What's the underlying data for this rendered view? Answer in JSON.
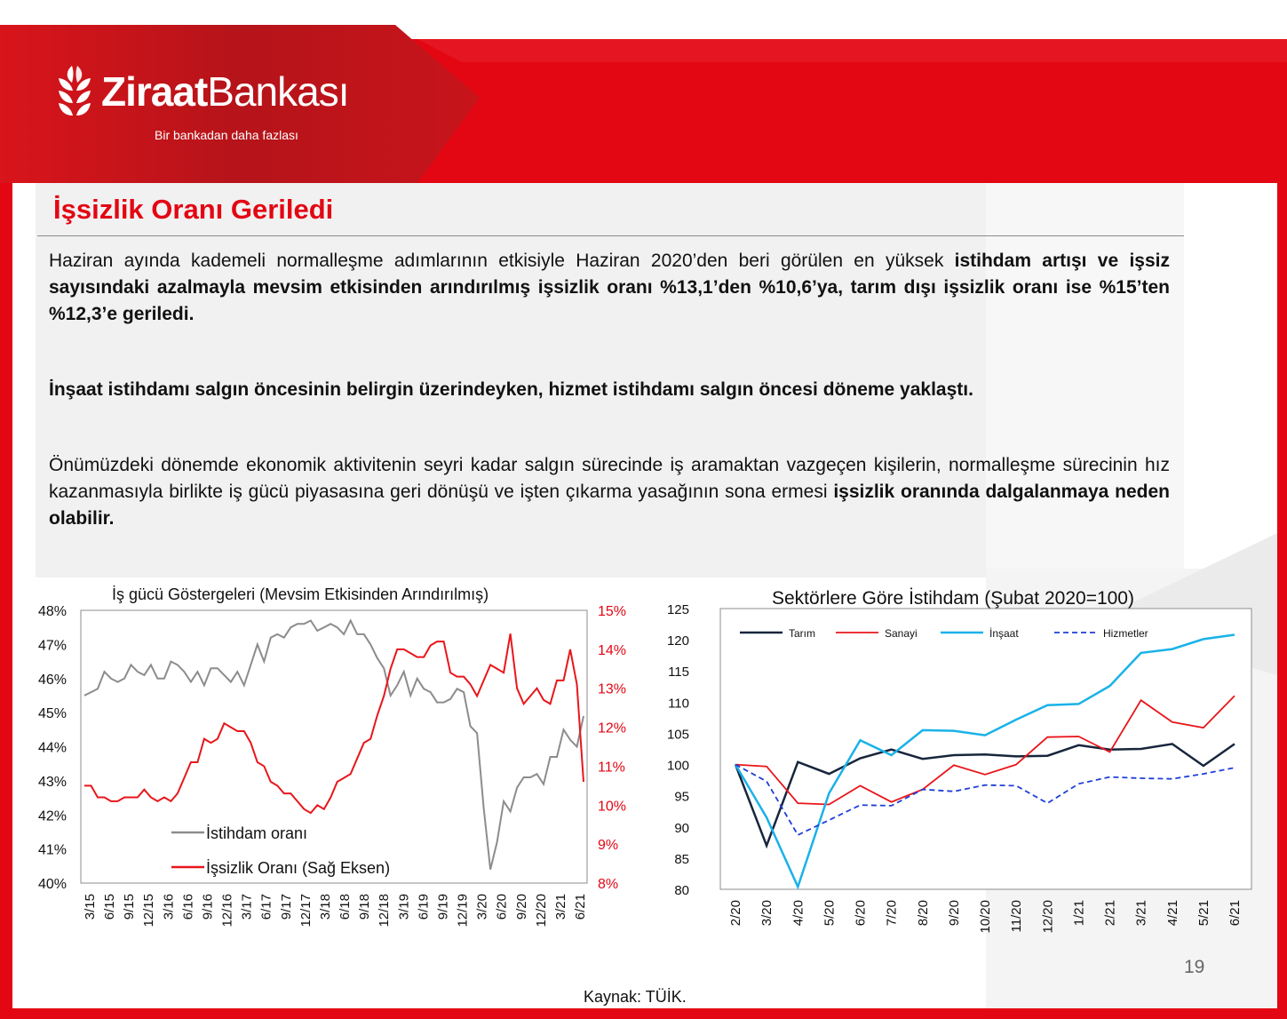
{
  "header": {
    "logo_text_bold": "Ziraat",
    "logo_text_light": "Bankası",
    "slogan": "Bir bankadan daha fazlası"
  },
  "page": {
    "title": "İşsizlik Oranı Geriledi",
    "page_number": "19",
    "source": "Kaynak: TÜİK."
  },
  "paragraphs": {
    "p1_normal": "Haziran ayında kademeli normalleşme adımlarının etkisiyle Haziran 2020’den beri görülen en yüksek ",
    "p1_bold": "istihdam artışı ve işsiz sayısındaki azalmayla mevsim etkisinden arındırılmış işsizlik oranı %13,1’den %10,6’ya, tarım dışı işsizlik oranı ise %15’ten %12,3’e geriledi.",
    "p2_bold": "İnşaat istihdamı salgın öncesinin belirgin üzerindeyken, hizmet istihdamı salgın öncesi döneme yaklaştı.",
    "p3_normal": "Önümüzdeki dönemde ekonomik aktivitenin seyri kadar salgın sürecinde iş aramaktan vazgeçen kişilerin, normalleşme sürecinin hız kazanmasıyla birlikte iş gücü piyasasına geri dönüşü ve işten çıkarma yasağının sona ermesi ",
    "p3_bold": "işsizlik oranında dalgalanmaya neden olabilir."
  },
  "colors": {
    "brand_red": "#e30613",
    "dark_red": "#b0141a",
    "tarim": "#17263c",
    "sanayi": "#e8161b",
    "insaat": "#19b2e8",
    "hizmetler": "#1f3fd8",
    "istihdam": "#8c8c8c"
  },
  "chart_data": [
    {
      "type": "line",
      "title": "İş gücü Göstergeleri (Mevsim Etkisinden Arındırılmış)",
      "x_tick_labels": [
        "3/15",
        "6/15",
        "9/15",
        "12/15",
        "3/16",
        "6/16",
        "9/16",
        "12/16",
        "3/17",
        "6/17",
        "9/17",
        "12/17",
        "3/18",
        "6/18",
        "9/18",
        "12/18",
        "3/19",
        "6/19",
        "9/19",
        "12/19",
        "3/20",
        "6/20",
        "9/20",
        "12/20",
        "3/21",
        "6/21"
      ],
      "y_left_ticks": [
        "40%",
        "41%",
        "42%",
        "43%",
        "44%",
        "45%",
        "46%",
        "47%",
        "48%"
      ],
      "y_right_ticks": [
        "8%",
        "9%",
        "10%",
        "11%",
        "12%",
        "13%",
        "14%",
        "15%"
      ],
      "ylim_left": [
        40,
        48
      ],
      "ylim_right": [
        8,
        15
      ],
      "legend_placement": "bottom-left inside",
      "series": [
        {
          "name": "İstihdam oranı",
          "axis": "left",
          "values": [
            45.5,
            45.6,
            45.7,
            46.2,
            46.0,
            45.9,
            46.0,
            46.4,
            46.2,
            46.1,
            46.4,
            46.0,
            46.0,
            46.5,
            46.4,
            46.2,
            45.9,
            46.2,
            45.8,
            46.3,
            46.3,
            46.1,
            45.9,
            46.2,
            45.8,
            46.4,
            47.0,
            46.5,
            47.2,
            47.3,
            47.2,
            47.5,
            47.6,
            47.6,
            47.7,
            47.4,
            47.5,
            47.6,
            47.5,
            47.3,
            47.7,
            47.3,
            47.3,
            47.0,
            46.6,
            46.3,
            45.5,
            45.8,
            46.2,
            45.5,
            46.0,
            45.7,
            45.6,
            45.3,
            45.3,
            45.4,
            45.7,
            45.6,
            44.6,
            44.4,
            42.2,
            40.4,
            41.2,
            42.4,
            42.1,
            42.8,
            43.1,
            43.1,
            43.2,
            42.9,
            43.7,
            43.7,
            44.5,
            44.2,
            44.0,
            44.9
          ]
        },
        {
          "name": "İşsizlik Oranı (Sağ Eksen)",
          "axis": "right",
          "values": [
            10.5,
            10.5,
            10.2,
            10.2,
            10.1,
            10.1,
            10.2,
            10.2,
            10.2,
            10.4,
            10.2,
            10.1,
            10.2,
            10.1,
            10.3,
            10.7,
            11.1,
            11.1,
            11.7,
            11.6,
            11.7,
            12.1,
            12.0,
            11.9,
            11.9,
            11.6,
            11.1,
            11.0,
            10.6,
            10.5,
            10.3,
            10.3,
            10.1,
            9.9,
            9.8,
            10.0,
            9.9,
            10.2,
            10.6,
            10.7,
            10.8,
            11.2,
            11.6,
            11.7,
            12.3,
            12.8,
            13.5,
            14.0,
            14.0,
            13.9,
            13.8,
            13.8,
            14.1,
            14.2,
            14.2,
            13.4,
            13.3,
            13.3,
            13.1,
            12.8,
            13.2,
            13.6,
            13.5,
            13.4,
            14.4,
            13.0,
            12.6,
            12.8,
            13.0,
            12.7,
            12.6,
            13.2,
            13.2,
            14.0,
            13.1,
            10.6
          ]
        }
      ]
    },
    {
      "type": "line",
      "title": "Sektörlere Göre İstihdam (Şubat 2020=100)",
      "categories": [
        "2/20",
        "3/20",
        "4/20",
        "5/20",
        "6/20",
        "7/20",
        "8/20",
        "9/20",
        "10/20",
        "11/20",
        "12/20",
        "1/21",
        "2/21",
        "3/21",
        "4/21",
        "5/21",
        "6/21"
      ],
      "y_ticks": [
        "80",
        "85",
        "90",
        "95",
        "100",
        "105",
        "110",
        "115",
        "120",
        "125"
      ],
      "ylim": [
        80,
        125
      ],
      "legend_placement": "top inside",
      "series": [
        {
          "name": "Tarım",
          "values": [
            100,
            87,
            100.4,
            98.5,
            101,
            102.4,
            100.9,
            101.5,
            101.6,
            101.3,
            101.4,
            103.1,
            102.4,
            102.5,
            103.3,
            99.8,
            103.3
          ]
        },
        {
          "name": "Sanayi",
          "values": [
            100,
            99.7,
            93.8,
            93.6,
            96.6,
            94.0,
            96.0,
            99.9,
            98.4,
            100,
            104.4,
            104.5,
            102,
            110.3,
            106.8,
            105.9,
            111
          ]
        },
        {
          "name": "İnşaat",
          "values": [
            100,
            91.5,
            80.4,
            95.4,
            103.9,
            101.5,
            105.5,
            105.4,
            104.7,
            107.2,
            109.5,
            109.7,
            112.6,
            117.9,
            118.5,
            120.1,
            120.8
          ]
        },
        {
          "name": "Hizmetler",
          "values": [
            100,
            97.3,
            88.7,
            91.1,
            93.5,
            93.4,
            96.0,
            95.7,
            96.7,
            96.6,
            93.8,
            96.9,
            98.0,
            97.8,
            97.7,
            98.5,
            99.5
          ]
        }
      ]
    }
  ]
}
